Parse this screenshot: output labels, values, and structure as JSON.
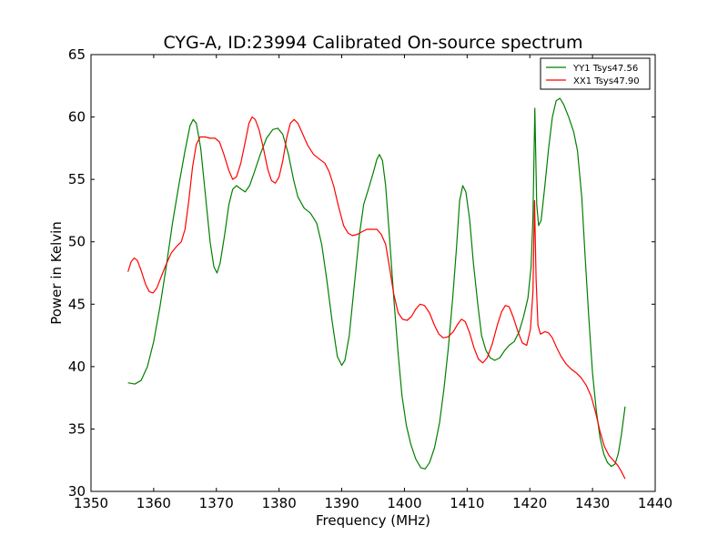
{
  "chart_data": {
    "type": "line",
    "title": "CYG-A, ID:23994 Calibrated On-source spectrum",
    "xlabel": "Frequency (MHz)",
    "ylabel": "Power in Kelvin",
    "xlim": [
      1350,
      1440
    ],
    "ylim": [
      30,
      65
    ],
    "xticks": [
      1350,
      1360,
      1370,
      1380,
      1390,
      1400,
      1410,
      1420,
      1430,
      1440
    ],
    "yticks": [
      30,
      35,
      40,
      45,
      50,
      55,
      60,
      65
    ],
    "grid": false,
    "legend_position": "top-right",
    "series": [
      {
        "name": "YY1 Tsys47.56",
        "color": "#008000",
        "points": [
          [
            1355.9,
            38.7
          ],
          [
            1357.0,
            38.6
          ],
          [
            1358.0,
            38.9
          ],
          [
            1359.0,
            40.0
          ],
          [
            1360.0,
            42.0
          ],
          [
            1361.0,
            44.8
          ],
          [
            1362.0,
            48.0
          ],
          [
            1363.0,
            51.5
          ],
          [
            1364.0,
            54.5
          ],
          [
            1365.0,
            57.3
          ],
          [
            1365.8,
            59.3
          ],
          [
            1366.3,
            59.8
          ],
          [
            1366.8,
            59.5
          ],
          [
            1367.5,
            57.5
          ],
          [
            1368.3,
            53.5
          ],
          [
            1369.0,
            50.0
          ],
          [
            1369.6,
            48.0
          ],
          [
            1370.1,
            47.5
          ],
          [
            1370.6,
            48.3
          ],
          [
            1371.3,
            50.5
          ],
          [
            1372.0,
            53.0
          ],
          [
            1372.6,
            54.2
          ],
          [
            1373.2,
            54.5
          ],
          [
            1374.0,
            54.2
          ],
          [
            1374.6,
            54.0
          ],
          [
            1375.3,
            54.5
          ],
          [
            1376.0,
            55.5
          ],
          [
            1377.0,
            57.0
          ],
          [
            1378.0,
            58.3
          ],
          [
            1379.0,
            59.0
          ],
          [
            1379.8,
            59.1
          ],
          [
            1380.6,
            58.6
          ],
          [
            1381.5,
            57.0
          ],
          [
            1382.3,
            55.0
          ],
          [
            1383.0,
            53.6
          ],
          [
            1384.0,
            52.7
          ],
          [
            1385.0,
            52.3
          ],
          [
            1386.0,
            51.5
          ],
          [
            1386.8,
            49.8
          ],
          [
            1387.6,
            47.0
          ],
          [
            1388.5,
            43.5
          ],
          [
            1389.3,
            40.8
          ],
          [
            1390.0,
            40.1
          ],
          [
            1390.5,
            40.5
          ],
          [
            1391.2,
            42.5
          ],
          [
            1392.0,
            46.5
          ],
          [
            1392.8,
            50.5
          ],
          [
            1393.5,
            53.0
          ],
          [
            1394.3,
            54.3
          ],
          [
            1395.0,
            55.5
          ],
          [
            1395.6,
            56.6
          ],
          [
            1396.0,
            57.0
          ],
          [
            1396.5,
            56.5
          ],
          [
            1397.0,
            54.5
          ],
          [
            1397.6,
            50.5
          ],
          [
            1398.3,
            45.5
          ],
          [
            1399.0,
            41.0
          ],
          [
            1399.6,
            37.7
          ],
          [
            1400.3,
            35.3
          ],
          [
            1401.0,
            33.8
          ],
          [
            1401.8,
            32.6
          ],
          [
            1402.6,
            31.9
          ],
          [
            1403.3,
            31.8
          ],
          [
            1404.0,
            32.3
          ],
          [
            1404.8,
            33.5
          ],
          [
            1405.6,
            35.5
          ],
          [
            1406.3,
            38.2
          ],
          [
            1407.0,
            41.5
          ],
          [
            1407.7,
            45.5
          ],
          [
            1408.3,
            49.5
          ],
          [
            1408.8,
            53.3
          ],
          [
            1409.3,
            54.5
          ],
          [
            1409.8,
            54.0
          ],
          [
            1410.4,
            51.8
          ],
          [
            1411.0,
            48.3
          ],
          [
            1411.7,
            45.0
          ],
          [
            1412.3,
            42.5
          ],
          [
            1413.0,
            41.3
          ],
          [
            1413.7,
            40.7
          ],
          [
            1414.4,
            40.5
          ],
          [
            1415.2,
            40.7
          ],
          [
            1416.0,
            41.3
          ],
          [
            1416.7,
            41.7
          ],
          [
            1417.5,
            42.0
          ],
          [
            1418.3,
            42.8
          ],
          [
            1419.0,
            44.0
          ],
          [
            1419.7,
            45.5
          ],
          [
            1420.2,
            48.0
          ],
          [
            1420.5,
            52.0
          ],
          [
            1420.8,
            60.7
          ],
          [
            1421.1,
            53.0
          ],
          [
            1421.4,
            51.3
          ],
          [
            1421.8,
            51.7
          ],
          [
            1422.4,
            54.5
          ],
          [
            1423.0,
            57.5
          ],
          [
            1423.6,
            60.0
          ],
          [
            1424.2,
            61.3
          ],
          [
            1424.8,
            61.5
          ],
          [
            1425.4,
            61.0
          ],
          [
            1426.2,
            60.0
          ],
          [
            1427.0,
            58.8
          ],
          [
            1427.6,
            57.3
          ],
          [
            1428.3,
            53.5
          ],
          [
            1428.8,
            49.0
          ],
          [
            1429.4,
            44.0
          ],
          [
            1430.0,
            39.5
          ],
          [
            1430.6,
            36.5
          ],
          [
            1431.2,
            34.3
          ],
          [
            1431.8,
            33.0
          ],
          [
            1432.4,
            32.3
          ],
          [
            1433.0,
            32.0
          ],
          [
            1433.6,
            32.2
          ],
          [
            1434.1,
            33.0
          ],
          [
            1434.6,
            34.5
          ],
          [
            1435.2,
            36.8
          ]
        ]
      },
      {
        "name": "XX1 Tsys47.90",
        "color": "#ff0000",
        "points": [
          [
            1355.9,
            47.6
          ],
          [
            1356.4,
            48.4
          ],
          [
            1356.9,
            48.7
          ],
          [
            1357.4,
            48.5
          ],
          [
            1358.0,
            47.7
          ],
          [
            1358.7,
            46.6
          ],
          [
            1359.3,
            46.0
          ],
          [
            1359.9,
            45.9
          ],
          [
            1360.5,
            46.3
          ],
          [
            1361.2,
            47.2
          ],
          [
            1362.0,
            48.2
          ],
          [
            1362.8,
            49.1
          ],
          [
            1363.6,
            49.6
          ],
          [
            1364.4,
            50.0
          ],
          [
            1365.0,
            51.0
          ],
          [
            1365.6,
            53.3
          ],
          [
            1366.2,
            56.0
          ],
          [
            1366.8,
            57.8
          ],
          [
            1367.4,
            58.4
          ],
          [
            1368.2,
            58.4
          ],
          [
            1369.0,
            58.3
          ],
          [
            1369.8,
            58.3
          ],
          [
            1370.5,
            58.0
          ],
          [
            1371.2,
            57.0
          ],
          [
            1372.0,
            55.7
          ],
          [
            1372.6,
            55.0
          ],
          [
            1373.2,
            55.2
          ],
          [
            1373.9,
            56.3
          ],
          [
            1374.6,
            58.0
          ],
          [
            1375.2,
            59.5
          ],
          [
            1375.7,
            60.0
          ],
          [
            1376.2,
            59.8
          ],
          [
            1376.8,
            59.0
          ],
          [
            1377.5,
            57.5
          ],
          [
            1378.2,
            55.8
          ],
          [
            1378.8,
            54.9
          ],
          [
            1379.4,
            54.7
          ],
          [
            1380.0,
            55.2
          ],
          [
            1380.6,
            56.5
          ],
          [
            1381.2,
            58.3
          ],
          [
            1381.8,
            59.5
          ],
          [
            1382.4,
            59.8
          ],
          [
            1383.0,
            59.5
          ],
          [
            1383.8,
            58.6
          ],
          [
            1384.6,
            57.7
          ],
          [
            1385.5,
            57.0
          ],
          [
            1386.5,
            56.6
          ],
          [
            1387.3,
            56.3
          ],
          [
            1388.0,
            55.6
          ],
          [
            1388.7,
            54.5
          ],
          [
            1389.5,
            52.8
          ],
          [
            1390.3,
            51.3
          ],
          [
            1391.0,
            50.7
          ],
          [
            1391.7,
            50.5
          ],
          [
            1392.5,
            50.6
          ],
          [
            1393.2,
            50.8
          ],
          [
            1394.0,
            51.0
          ],
          [
            1394.8,
            51.0
          ],
          [
            1395.6,
            51.0
          ],
          [
            1396.3,
            50.6
          ],
          [
            1397.0,
            49.8
          ],
          [
            1397.6,
            48.0
          ],
          [
            1398.3,
            45.8
          ],
          [
            1399.0,
            44.3
          ],
          [
            1399.7,
            43.8
          ],
          [
            1400.4,
            43.7
          ],
          [
            1401.1,
            44.0
          ],
          [
            1401.8,
            44.6
          ],
          [
            1402.5,
            45.0
          ],
          [
            1403.2,
            44.9
          ],
          [
            1404.0,
            44.3
          ],
          [
            1404.8,
            43.3
          ],
          [
            1405.5,
            42.6
          ],
          [
            1406.2,
            42.3
          ],
          [
            1407.0,
            42.4
          ],
          [
            1407.8,
            42.8
          ],
          [
            1408.5,
            43.4
          ],
          [
            1409.1,
            43.8
          ],
          [
            1409.7,
            43.6
          ],
          [
            1410.4,
            42.7
          ],
          [
            1411.1,
            41.5
          ],
          [
            1411.8,
            40.6
          ],
          [
            1412.5,
            40.3
          ],
          [
            1413.2,
            40.7
          ],
          [
            1414.0,
            41.8
          ],
          [
            1414.8,
            43.3
          ],
          [
            1415.5,
            44.4
          ],
          [
            1416.1,
            44.9
          ],
          [
            1416.7,
            44.8
          ],
          [
            1417.4,
            43.9
          ],
          [
            1418.1,
            42.8
          ],
          [
            1418.8,
            41.9
          ],
          [
            1419.5,
            41.7
          ],
          [
            1420.1,
            43.0
          ],
          [
            1420.5,
            46.0
          ],
          [
            1420.75,
            53.3
          ],
          [
            1421.0,
            47.0
          ],
          [
            1421.3,
            43.3
          ],
          [
            1421.7,
            42.6
          ],
          [
            1422.4,
            42.8
          ],
          [
            1423.0,
            42.7
          ],
          [
            1423.6,
            42.3
          ],
          [
            1424.3,
            41.5
          ],
          [
            1425.0,
            40.8
          ],
          [
            1425.8,
            40.2
          ],
          [
            1426.6,
            39.8
          ],
          [
            1427.4,
            39.5
          ],
          [
            1428.2,
            39.1
          ],
          [
            1429.0,
            38.5
          ],
          [
            1429.8,
            37.6
          ],
          [
            1430.5,
            36.3
          ],
          [
            1431.2,
            34.8
          ],
          [
            1431.9,
            33.6
          ],
          [
            1432.6,
            32.9
          ],
          [
            1433.3,
            32.5
          ],
          [
            1434.0,
            32.1
          ],
          [
            1434.6,
            31.6
          ],
          [
            1435.2,
            31.0
          ]
        ]
      }
    ]
  }
}
